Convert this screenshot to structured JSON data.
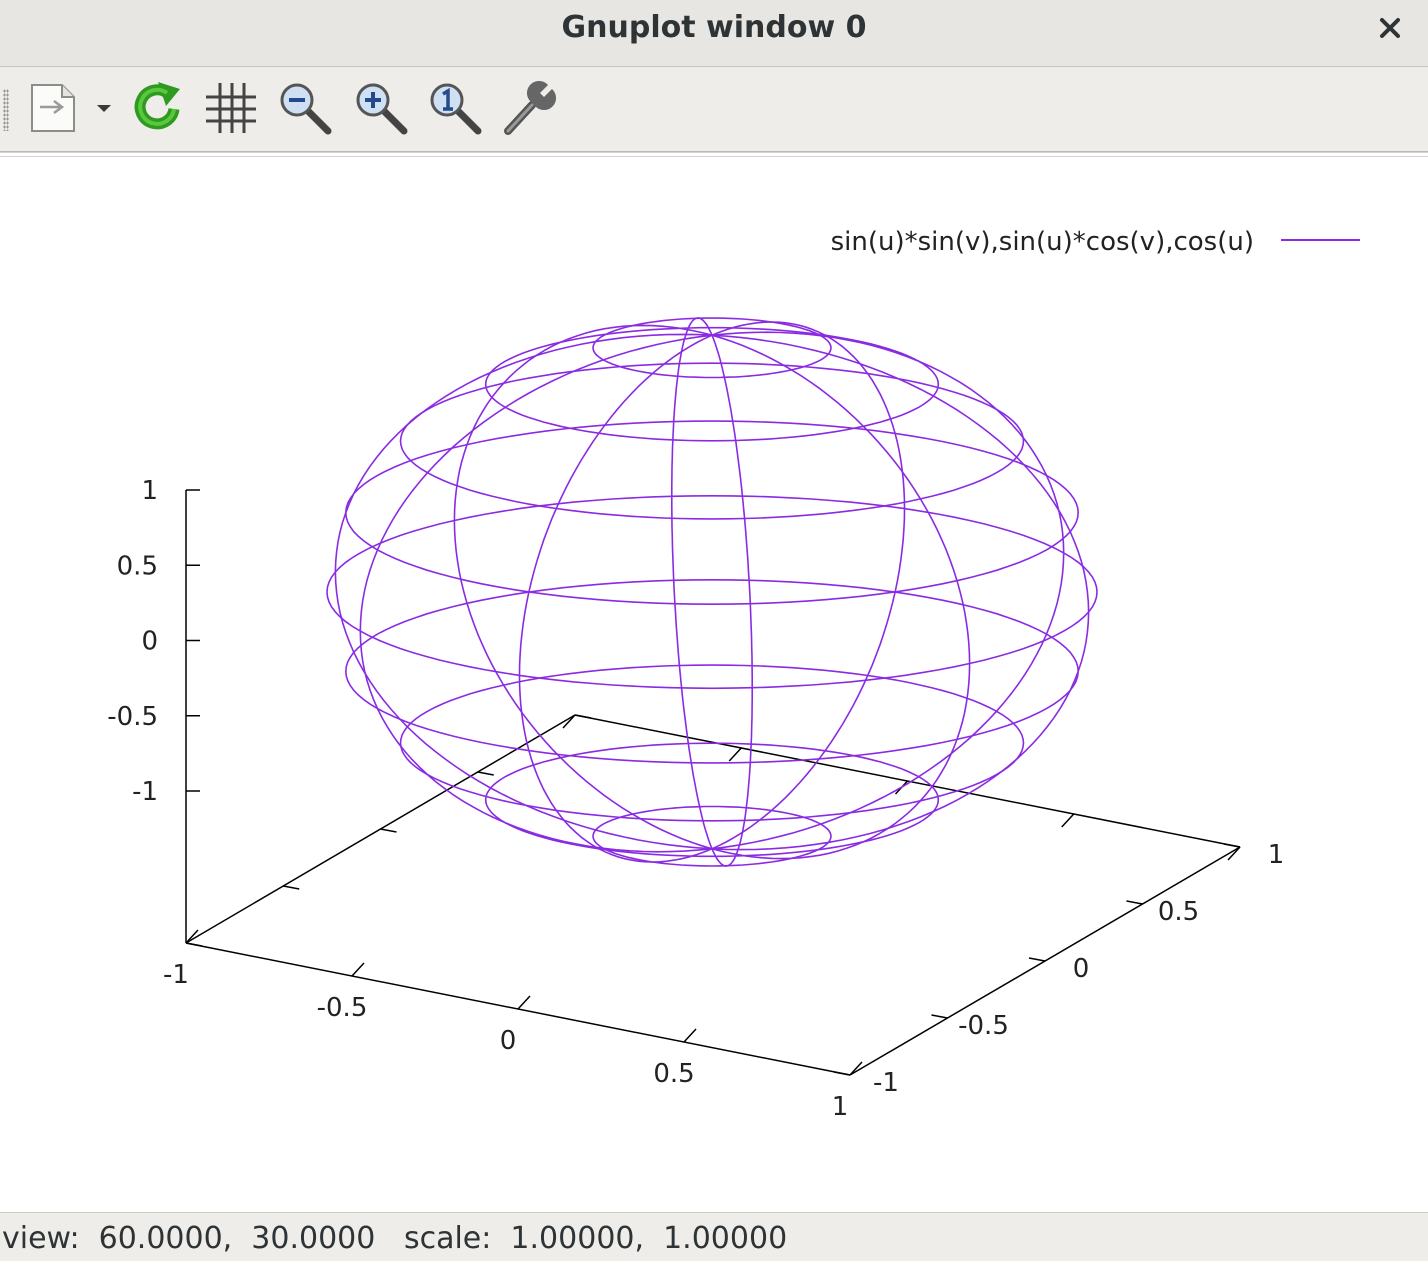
{
  "window": {
    "title": "Gnuplot window 0"
  },
  "toolbar": {
    "items": [
      {
        "name": "export-icon"
      },
      {
        "name": "dropdown-icon"
      },
      {
        "name": "replot-icon"
      },
      {
        "name": "grid-icon"
      },
      {
        "name": "zoom-out-icon"
      },
      {
        "name": "zoom-in-icon"
      },
      {
        "name": "zoom-reset-icon"
      },
      {
        "name": "configure-icon"
      }
    ]
  },
  "status": {
    "text": "view:  60.0000,  30.0000   scale:  1.00000,  1.00000"
  },
  "colors": {
    "plot": "#8a2be2",
    "axis": "#000000"
  },
  "chart_data": {
    "type": "parametric-surface",
    "legend": "sin(u)*sin(v),sin(u)*cos(v),cos(u)",
    "legend_position": "top-right",
    "functions": {
      "x": "sin(u)*sin(v)",
      "y": "sin(u)*cos(v)",
      "z": "cos(u)"
    },
    "view": {
      "rot_x": 60,
      "rot_z": 30,
      "scale": 1,
      "scale_z": 1
    },
    "xrange": [
      -1,
      1
    ],
    "yrange": [
      -1,
      1
    ],
    "zrange": [
      -1,
      1
    ],
    "x_ticks": [
      "-1",
      "-0.5",
      "0",
      "0.5",
      "1"
    ],
    "y_ticks": [
      "-1",
      "-0.5",
      "0",
      "0.5",
      "1"
    ],
    "z_ticks": [
      "1",
      "0.5",
      "0",
      "-0.5",
      "-1"
    ]
  }
}
